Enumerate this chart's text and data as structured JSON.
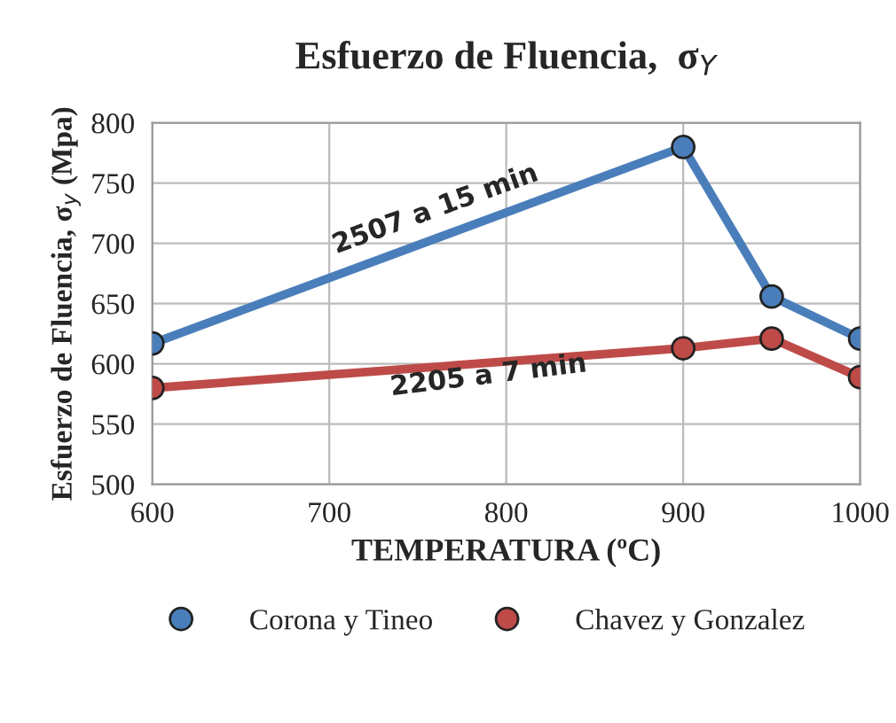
{
  "chart_data": {
    "type": "line",
    "title": "Esfuerzo de Fluencia,  σ$_{Y}$",
    "xlabel": "TEMPERATURA (ºC)",
    "ylabel": "Esfuerzo de Fluencia, σ$_{y}$ (Mpa)",
    "x": [
      600,
      900,
      950,
      1000
    ],
    "series": [
      {
        "name": "Corona y Tineo",
        "color": "#4a7ebb",
        "values": [
          617,
          780,
          656,
          621
        ]
      },
      {
        "name": "Chavez y Gonzalez",
        "color": "#be4b48",
        "values": [
          580,
          613,
          621,
          589
        ]
      }
    ],
    "annotations": [
      "2507 a 15 min",
      {
        "text": "2205 a 7 min",
        "x": 790,
        "y": 590
      }
    ],
    "xlim": [
      600,
      1000
    ],
    "xticks": [
      600,
      700,
      800,
      900,
      1000
    ],
    "ylim": [
      500,
      800
    ],
    "yticks": [
      500,
      550,
      600,
      650,
      700,
      750,
      800
    ],
    "grid": true,
    "legend": "bottom",
    "marker": "circle",
    "line_style": "solid"
  }
}
